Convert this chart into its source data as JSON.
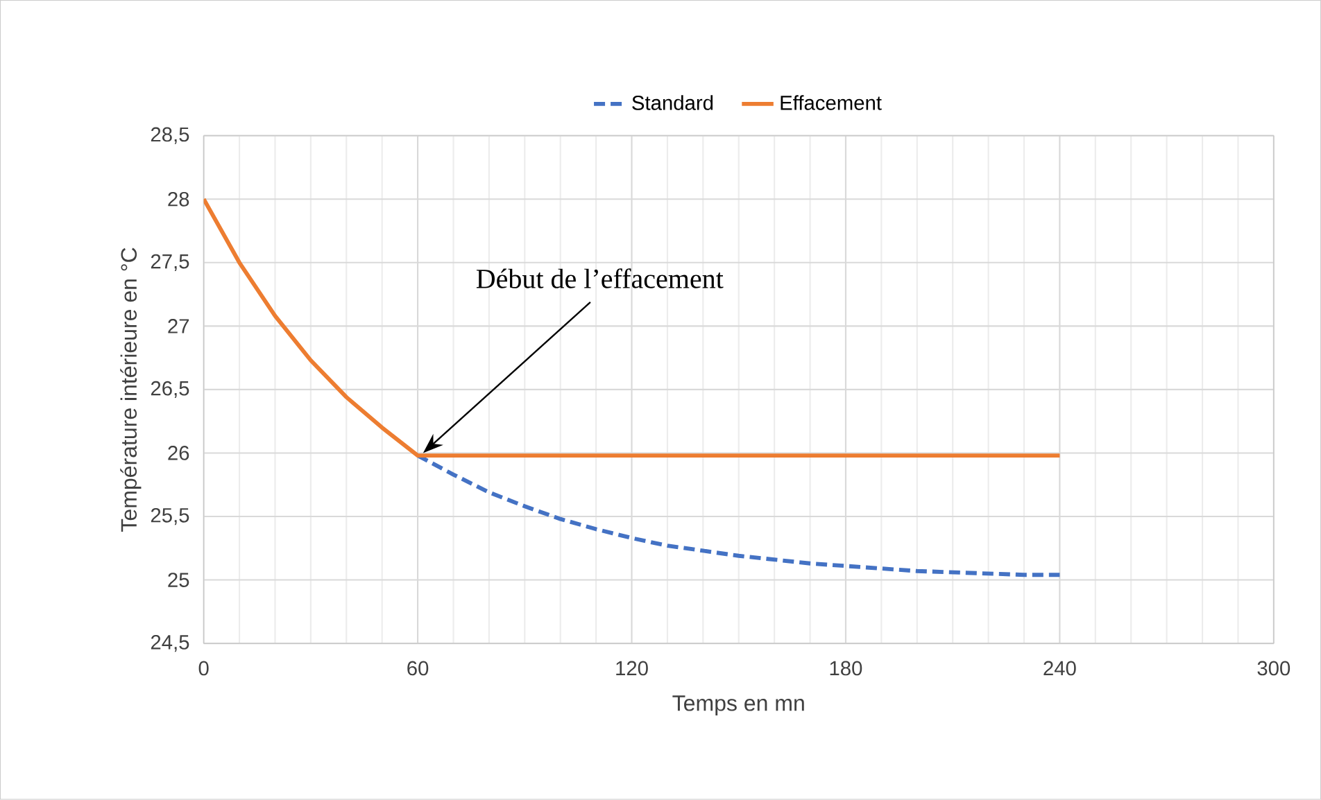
{
  "chart_data": {
    "type": "line",
    "xlabel": "Temps  en  mn",
    "ylabel": "Température intérieure en °C",
    "xlim": [
      0,
      300
    ],
    "xticks": [
      0,
      60,
      120,
      180,
      240,
      300
    ],
    "ylim": [
      24.5,
      28.5
    ],
    "yticks": [
      {
        "value": 24.5,
        "label": "24,5"
      },
      25,
      {
        "value": 25.5,
        "label": "25,5"
      },
      26,
      {
        "value": 26.5,
        "label": "26,5"
      },
      27,
      {
        "value": 27.5,
        "label": "27,5"
      },
      28,
      {
        "value": 28.5,
        "label": "28,5"
      }
    ],
    "grid": true,
    "legend": "top",
    "marker": "none",
    "series": [
      {
        "name": "Standard",
        "color": "#4472c4",
        "line_style": "dashed",
        "x": [
          60,
          70,
          80,
          90,
          100,
          110,
          120,
          130,
          140,
          150,
          160,
          170,
          180,
          190,
          200,
          210,
          220,
          230,
          240
        ],
        "values": [
          25.98,
          25.83,
          25.69,
          25.58,
          25.48,
          25.4,
          25.33,
          25.27,
          25.23,
          25.19,
          25.16,
          25.13,
          25.11,
          25.09,
          25.07,
          25.06,
          25.05,
          25.04,
          25.04
        ]
      },
      {
        "name": "Effacement",
        "color": "#ed7d31",
        "line_style": "solid",
        "x": [
          0,
          10,
          20,
          30,
          40,
          50,
          60,
          240
        ],
        "values": [
          28,
          27.5,
          27.08,
          26.73,
          26.44,
          26.2,
          25.98,
          25.98
        ]
      }
    ],
    "annotations": [
      "Début de l’effacement"
    ]
  }
}
